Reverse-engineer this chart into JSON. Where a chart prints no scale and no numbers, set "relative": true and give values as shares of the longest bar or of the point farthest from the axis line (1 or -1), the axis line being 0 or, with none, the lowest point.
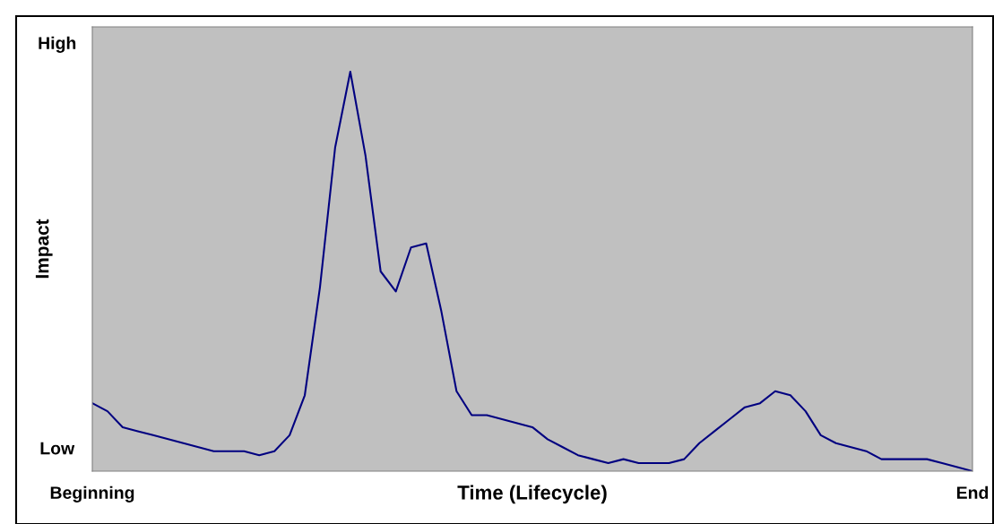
{
  "chart_data": {
    "type": "line",
    "relative": true,
    "xlabel": "Time (Lifecycle)",
    "ylabel": "Impact",
    "annotations": [
      "High",
      "Low"
    ],
    "categories": [
      "Beginning",
      null,
      null,
      null,
      null,
      null,
      null,
      null,
      null,
      null,
      null,
      null,
      null,
      null,
      null,
      null,
      null,
      null,
      null,
      null,
      null,
      null,
      null,
      null,
      null,
      null,
      null,
      null,
      null,
      null,
      null,
      null,
      null,
      null,
      null,
      null,
      null,
      null,
      null,
      null,
      null,
      null,
      null,
      null,
      null,
      null,
      null,
      null,
      null,
      null,
      null,
      null,
      null,
      null,
      null,
      null,
      null,
      null,
      "End"
    ],
    "series": [
      {
        "color": "#000080",
        "values": [
          0.17,
          0.15,
          0.11,
          0.1,
          0.09,
          0.08,
          0.07,
          0.06,
          0.05,
          0.05,
          0.05,
          0.04,
          0.05,
          0.09,
          0.19,
          0.46,
          0.81,
          1,
          0.79,
          0.5,
          0.45,
          0.56,
          0.57,
          0.4,
          0.2,
          0.14,
          0.14,
          0.13,
          0.12,
          0.11,
          0.08,
          0.06,
          0.04,
          0.03,
          0.02,
          0.03,
          0.02,
          0.02,
          0.02,
          0.03,
          0.07,
          0.1,
          0.13,
          0.16,
          0.17,
          0.2,
          0.19,
          0.15,
          0.09,
          0.07,
          0.06,
          0.05,
          0.03,
          0.03,
          0.03,
          0.03,
          0.02,
          0.01,
          0
        ]
      }
    ],
    "marker": "none",
    "line_style": "solid"
  }
}
